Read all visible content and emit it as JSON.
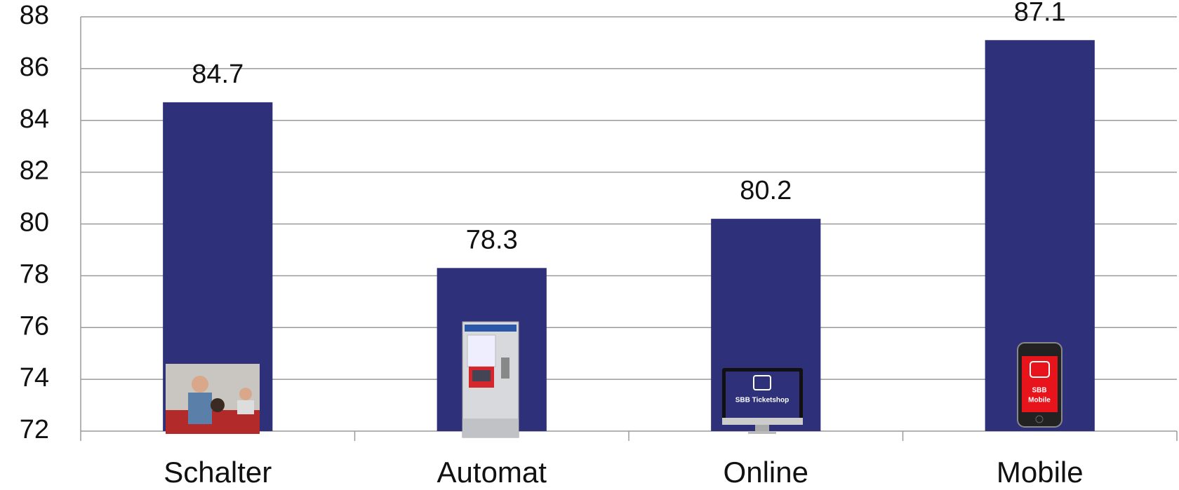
{
  "chart_data": {
    "type": "bar",
    "categories": [
      "Schalter",
      "Automat",
      "Online",
      "Mobile"
    ],
    "values": [
      84.7,
      78.3,
      80.2,
      87.1
    ],
    "color": "#2e3179",
    "ylim": [
      72,
      88
    ],
    "yticks": [
      72,
      74,
      76,
      78,
      80,
      82,
      84,
      86,
      88
    ],
    "grid": true
  },
  "icon_texts": [
    "SBB Ticketshop",
    "SBB",
    "Mobile"
  ]
}
